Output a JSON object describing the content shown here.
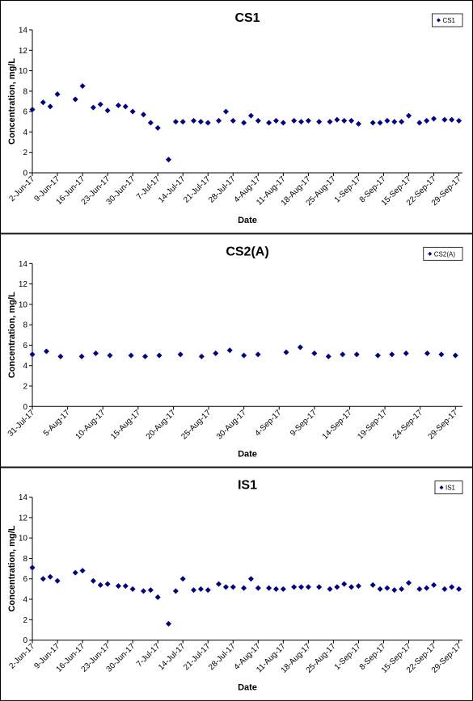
{
  "chart_data": [
    {
      "type": "scatter",
      "title": "CS1",
      "x_label": "Date",
      "y_label": "Concentration, mg/L",
      "legend": "top-right",
      "x": [
        "2017-06-02",
        "2017-06-05",
        "2017-06-07",
        "2017-06-09",
        "2017-06-14",
        "2017-06-16",
        "2017-06-19",
        "2017-06-21",
        "2017-06-23",
        "2017-06-26",
        "2017-06-28",
        "2017-06-30",
        "2017-07-03",
        "2017-07-05",
        "2017-07-07",
        "2017-07-10",
        "2017-07-12",
        "2017-07-14",
        "2017-07-17",
        "2017-07-19",
        "2017-07-21",
        "2017-07-24",
        "2017-07-26",
        "2017-07-28",
        "2017-07-31",
        "2017-08-02",
        "2017-08-04",
        "2017-08-07",
        "2017-08-09",
        "2017-08-11",
        "2017-08-14",
        "2017-08-16",
        "2017-08-18",
        "2017-08-21",
        "2017-08-24",
        "2017-08-26",
        "2017-08-28",
        "2017-08-30",
        "2017-09-01",
        "2017-09-05",
        "2017-09-07",
        "2017-09-09",
        "2017-09-11",
        "2017-09-13",
        "2017-09-15",
        "2017-09-18",
        "2017-09-20",
        "2017-09-22",
        "2017-09-25",
        "2017-09-27",
        "2017-09-29"
      ],
      "series": [
        {
          "name": "CS1",
          "color": "#000080",
          "values": [
            6.2,
            6.9,
            6.5,
            7.7,
            7.2,
            8.5,
            6.4,
            6.7,
            6.1,
            6.6,
            6.5,
            6.0,
            5.7,
            4.9,
            4.4,
            1.3,
            5.0,
            5.0,
            5.1,
            5.0,
            4.9,
            5.1,
            6.0,
            5.1,
            4.9,
            5.6,
            5.1,
            4.9,
            5.1,
            4.9,
            5.1,
            5.0,
            5.1,
            5.0,
            5.0,
            5.2,
            5.1,
            5.1,
            4.8,
            4.9,
            4.9,
            5.1,
            5.0,
            5.0,
            5.6,
            4.9,
            5.1,
            5.3,
            5.2,
            5.2,
            5.1
          ]
        }
      ],
      "xlim": [
        "2017-06-02",
        "2017-09-30"
      ],
      "xticks": [
        {
          "value": "2017-06-02",
          "label": "2-Jun-17"
        },
        {
          "value": "2017-06-09",
          "label": "9-Jun-17"
        },
        {
          "value": "2017-06-16",
          "label": "16-Jun-17"
        },
        {
          "value": "2017-06-23",
          "label": "23-Jun-17"
        },
        {
          "value": "2017-06-30",
          "label": "30-Jun-17"
        },
        {
          "value": "2017-07-07",
          "label": "7-Jul-17"
        },
        {
          "value": "2017-07-14",
          "label": "14-Jul-17"
        },
        {
          "value": "2017-07-21",
          "label": "21-Jul-17"
        },
        {
          "value": "2017-07-28",
          "label": "28-Jul-17"
        },
        {
          "value": "2017-08-04",
          "label": "4-Aug-17"
        },
        {
          "value": "2017-08-11",
          "label": "11-Aug-17"
        },
        {
          "value": "2017-08-18",
          "label": "18-Aug-17"
        },
        {
          "value": "2017-08-25",
          "label": "25-Aug-17"
        },
        {
          "value": "2017-09-01",
          "label": "1-Sep-17"
        },
        {
          "value": "2017-09-08",
          "label": "8-Sep-17"
        },
        {
          "value": "2017-09-15",
          "label": "15-Sep-17"
        },
        {
          "value": "2017-09-22",
          "label": "22-Sep-17"
        },
        {
          "value": "2017-09-29",
          "label": "29-Sep-17"
        }
      ],
      "ylim": [
        0,
        14
      ],
      "yticks": [
        0,
        2,
        4,
        6,
        8,
        10,
        12,
        14
      ]
    },
    {
      "type": "scatter",
      "title": "CS2(A)",
      "x_label": "Date",
      "y_label": "Concentration, mg/L",
      "legend": "top-right",
      "x": [
        "2017-07-31",
        "2017-08-02",
        "2017-08-04",
        "2017-08-07",
        "2017-08-09",
        "2017-08-11",
        "2017-08-14",
        "2017-08-16",
        "2017-08-18",
        "2017-08-21",
        "2017-08-24",
        "2017-08-26",
        "2017-08-28",
        "2017-08-30",
        "2017-09-01",
        "2017-09-05",
        "2017-09-07",
        "2017-09-09",
        "2017-09-11",
        "2017-09-13",
        "2017-09-15",
        "2017-09-18",
        "2017-09-20",
        "2017-09-22",
        "2017-09-25",
        "2017-09-27",
        "2017-09-29"
      ],
      "series": [
        {
          "name": "CS2(A)",
          "color": "#000080",
          "values": [
            5.1,
            5.4,
            4.9,
            4.9,
            5.2,
            5.0,
            5.0,
            4.9,
            5.0,
            5.1,
            4.9,
            5.2,
            5.5,
            5.0,
            5.1,
            5.3,
            5.8,
            5.2,
            4.9,
            5.1,
            5.1,
            5.0,
            5.1,
            5.2,
            5.2,
            5.1,
            5.0
          ]
        }
      ],
      "xlim": [
        "2017-07-31",
        "2017-09-30"
      ],
      "xticks": [
        {
          "value": "2017-07-31",
          "label": "31-Jul-17"
        },
        {
          "value": "2017-08-05",
          "label": "5-Aug-17"
        },
        {
          "value": "2017-08-10",
          "label": "10-Aug-17"
        },
        {
          "value": "2017-08-15",
          "label": "15-Aug-17"
        },
        {
          "value": "2017-08-20",
          "label": "20-Aug-17"
        },
        {
          "value": "2017-08-25",
          "label": "25-Aug-17"
        },
        {
          "value": "2017-08-30",
          "label": "30-Aug-17"
        },
        {
          "value": "2017-09-04",
          "label": "4-Sep-17"
        },
        {
          "value": "2017-09-09",
          "label": "9-Sep-17"
        },
        {
          "value": "2017-09-14",
          "label": "14-Sep-17"
        },
        {
          "value": "2017-09-19",
          "label": "19-Sep-17"
        },
        {
          "value": "2017-09-24",
          "label": "24-Sep-17"
        },
        {
          "value": "2017-09-29",
          "label": "29-Sep-17"
        }
      ],
      "ylim": [
        0,
        14
      ],
      "yticks": [
        0,
        2,
        4,
        6,
        8,
        10,
        12,
        14
      ]
    },
    {
      "type": "scatter",
      "title": "IS1",
      "x_label": "Date",
      "y_label": "Concentration, mg/L",
      "legend": "top-right",
      "x": [
        "2017-06-02",
        "2017-06-05",
        "2017-06-07",
        "2017-06-09",
        "2017-06-14",
        "2017-06-16",
        "2017-06-19",
        "2017-06-21",
        "2017-06-23",
        "2017-06-26",
        "2017-06-28",
        "2017-06-30",
        "2017-07-03",
        "2017-07-05",
        "2017-07-07",
        "2017-07-10",
        "2017-07-12",
        "2017-07-14",
        "2017-07-17",
        "2017-07-19",
        "2017-07-21",
        "2017-07-24",
        "2017-07-26",
        "2017-07-28",
        "2017-07-31",
        "2017-08-02",
        "2017-08-04",
        "2017-08-07",
        "2017-08-09",
        "2017-08-11",
        "2017-08-14",
        "2017-08-16",
        "2017-08-18",
        "2017-08-21",
        "2017-08-24",
        "2017-08-26",
        "2017-08-28",
        "2017-08-30",
        "2017-09-01",
        "2017-09-05",
        "2017-09-07",
        "2017-09-09",
        "2017-09-11",
        "2017-09-13",
        "2017-09-15",
        "2017-09-18",
        "2017-09-20",
        "2017-09-22",
        "2017-09-25",
        "2017-09-27",
        "2017-09-29"
      ],
      "series": [
        {
          "name": "IS1",
          "color": "#000080",
          "values": [
            7.1,
            6.0,
            6.2,
            5.8,
            6.6,
            6.8,
            5.8,
            5.4,
            5.5,
            5.3,
            5.3,
            5.0,
            4.8,
            4.9,
            4.2,
            1.6,
            4.8,
            6.0,
            4.9,
            5.0,
            4.9,
            5.5,
            5.2,
            5.2,
            5.1,
            6.0,
            5.1,
            5.1,
            5.0,
            5.0,
            5.2,
            5.2,
            5.2,
            5.2,
            5.0,
            5.2,
            5.5,
            5.2,
            5.3,
            5.4,
            5.0,
            5.1,
            4.9,
            5.0,
            5.6,
            5.0,
            5.1,
            5.4,
            5.0,
            5.2,
            5.0
          ]
        }
      ],
      "xlim": [
        "2017-06-02",
        "2017-09-30"
      ],
      "xticks": [
        {
          "value": "2017-06-02",
          "label": "2-Jun-17"
        },
        {
          "value": "2017-06-09",
          "label": "9-Jun-17"
        },
        {
          "value": "2017-06-16",
          "label": "16-Jun-17"
        },
        {
          "value": "2017-06-23",
          "label": "23-Jun-17"
        },
        {
          "value": "2017-06-30",
          "label": "30-Jun-17"
        },
        {
          "value": "2017-07-07",
          "label": "7-Jul-17"
        },
        {
          "value": "2017-07-14",
          "label": "14-Jul-17"
        },
        {
          "value": "2017-07-21",
          "label": "21-Jul-17"
        },
        {
          "value": "2017-07-28",
          "label": "28-Jul-17"
        },
        {
          "value": "2017-08-04",
          "label": "4-Aug-17"
        },
        {
          "value": "2017-08-11",
          "label": "11-Aug-17"
        },
        {
          "value": "2017-08-18",
          "label": "18-Aug-17"
        },
        {
          "value": "2017-08-25",
          "label": "25-Aug-17"
        },
        {
          "value": "2017-09-01",
          "label": "1-Sep-17"
        },
        {
          "value": "2017-09-08",
          "label": "8-Sep-17"
        },
        {
          "value": "2017-09-15",
          "label": "15-Sep-17"
        },
        {
          "value": "2017-09-22",
          "label": "22-Sep-17"
        },
        {
          "value": "2017-09-29",
          "label": "29-Sep-17"
        }
      ],
      "ylim": [
        0,
        14
      ],
      "yticks": [
        0,
        2,
        4,
        6,
        8,
        10,
        12,
        14
      ]
    }
  ]
}
